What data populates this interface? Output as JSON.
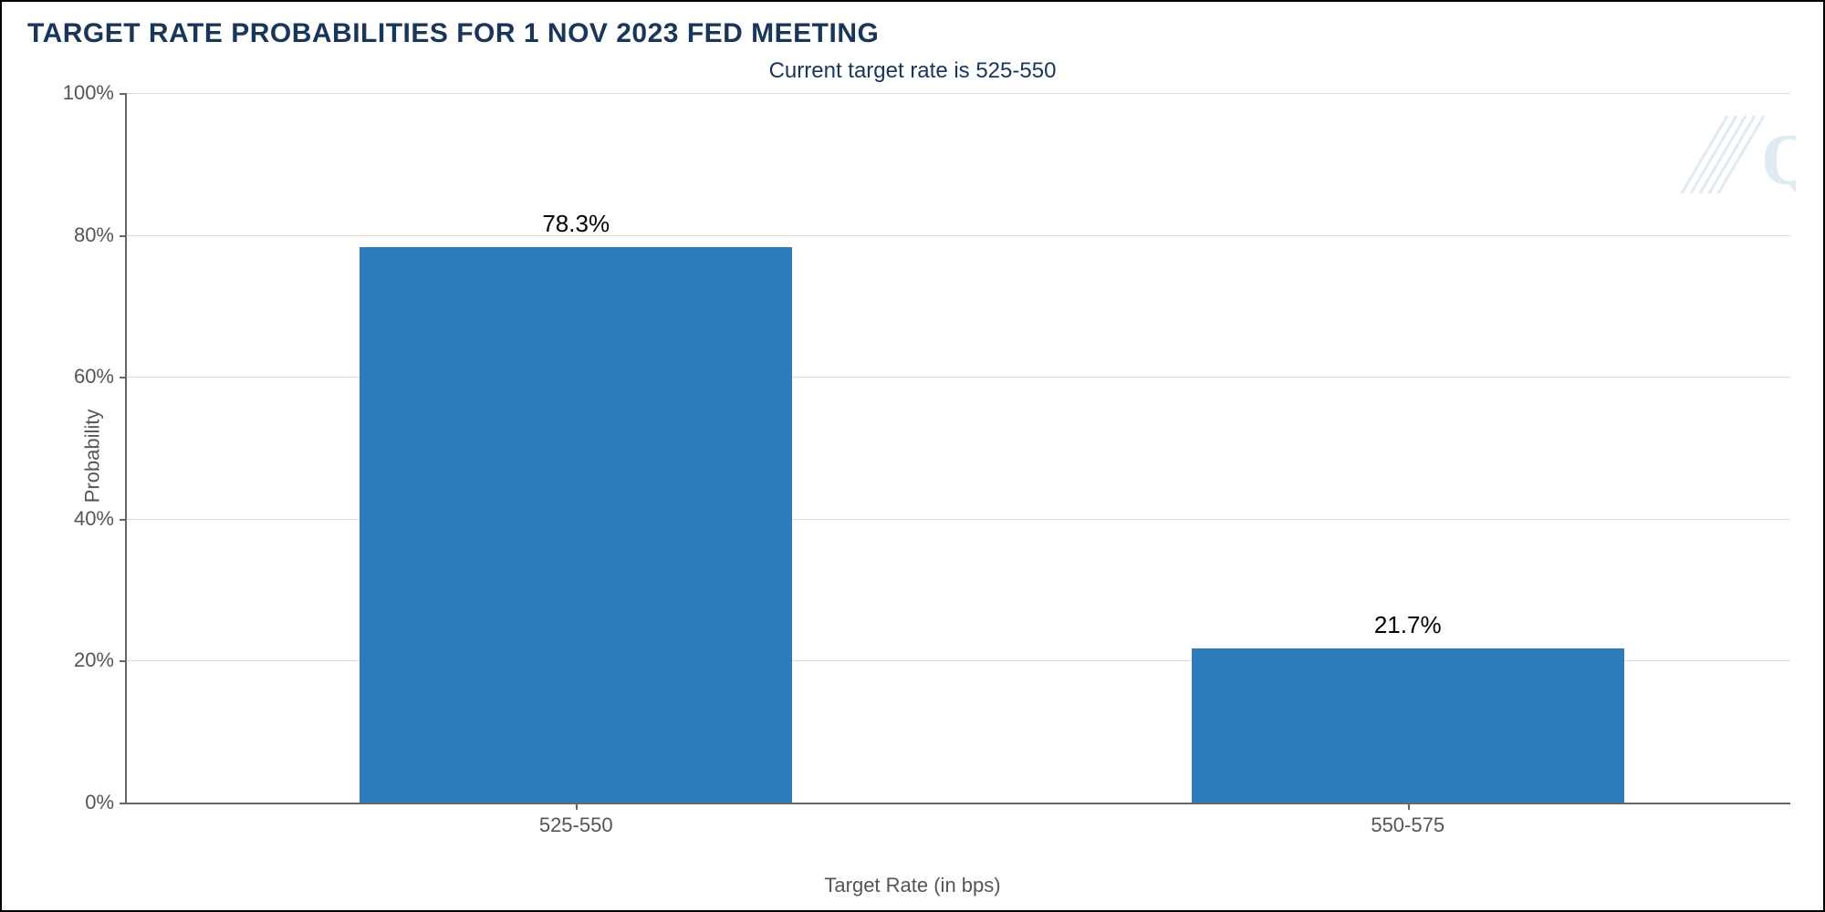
{
  "chart": {
    "type": "bar",
    "title": "TARGET RATE PROBABILITIES FOR 1 NOV 2023 FED MEETING",
    "subtitle": "Current target rate is 525-550",
    "title_color": "#18365a",
    "title_fontsize": 30,
    "subtitle_fontsize": 24,
    "background_color": "#ffffff",
    "border_color": "#000000",
    "grid_color": "#dcdcdc",
    "axis_line_color": "#666666",
    "tick_label_color": "#555555",
    "tick_label_fontsize": 22,
    "axis_title_fontsize": 22,
    "bar_label_fontsize": 26,
    "bar_label_color": "#000000",
    "y_axis": {
      "title": "Probability",
      "ylim": [
        0,
        100
      ],
      "ticks": [
        0,
        20,
        40,
        60,
        80,
        100
      ],
      "tick_labels": [
        "0%",
        "20%",
        "40%",
        "60%",
        "80%",
        "100%"
      ]
    },
    "x_axis": {
      "title": "Target Rate (in bps)",
      "categories": [
        "525-550",
        "550-575"
      ]
    },
    "series": {
      "values": [
        78.3,
        21.7
      ],
      "value_labels": [
        "78.3%",
        "21.7%"
      ],
      "bar_color": "#2d7bba",
      "bar_width_ratio": 0.26,
      "bar_centers_ratio": [
        0.27,
        0.77
      ]
    },
    "watermark": {
      "letter": "Q",
      "color": "#5a8fb8"
    }
  }
}
